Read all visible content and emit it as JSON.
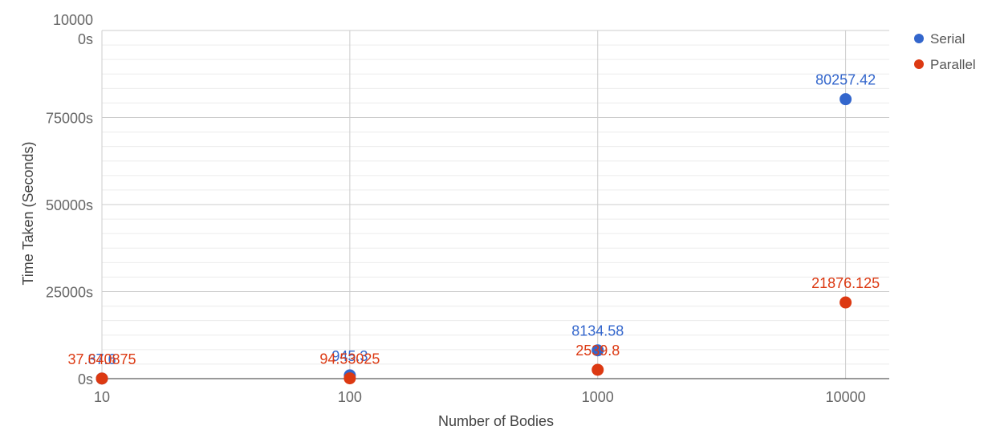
{
  "chart_data": {
    "type": "scatter",
    "title": "",
    "xlabel": "Number of Bodies",
    "ylabel": "Time Taken (Seconds)",
    "x_scale": "log",
    "x": [
      10,
      100,
      1000,
      10000
    ],
    "x_tick_labels": [
      "10",
      "100",
      "1000",
      "10000"
    ],
    "ylim": [
      0,
      100000
    ],
    "y_ticks": [
      0,
      25000,
      50000,
      75000,
      100000
    ],
    "y_tick_labels": [
      "0s",
      "25000s",
      "50000s",
      "75000s",
      "100000s"
    ],
    "grid": true,
    "legend_position": "right",
    "series": [
      {
        "name": "Serial",
        "color": "#3366cc",
        "values": [
          37.6,
          945.3,
          8134.58,
          80257.42
        ],
        "labels": [
          "37.6",
          "945.3",
          "8134.58",
          "80257.42"
        ]
      },
      {
        "name": "Parallel",
        "color": "#dc3912",
        "values": [
          37.640875,
          94.53025,
          2539.8,
          21876.125
        ],
        "labels": [
          "37.640875",
          "94.53025",
          "2539.8",
          "21876.125"
        ]
      }
    ]
  }
}
